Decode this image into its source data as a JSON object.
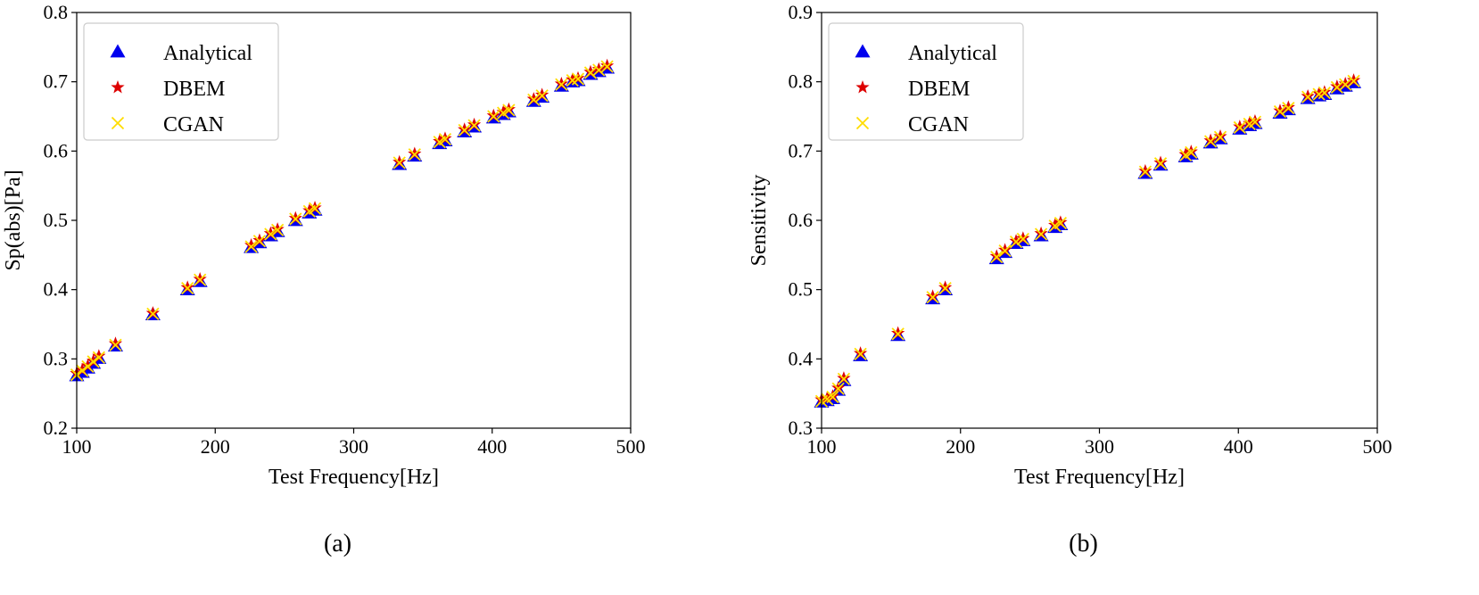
{
  "colors": {
    "analytical": "#0000ee",
    "dbem": "#dd0000",
    "cgan": "#ffdd00"
  },
  "chart_data": [
    {
      "type": "scatter",
      "caption": "(a)",
      "xlabel": "Test Frequency[Hz]",
      "ylabel": "Sp(abs)[Pa]",
      "xlim": [
        100,
        500
      ],
      "ylim": [
        0.2,
        0.8
      ],
      "xticks": [
        100,
        200,
        300,
        400,
        500
      ],
      "yticks": [
        0.2,
        0.3,
        0.4,
        0.5,
        0.6,
        0.7,
        0.8
      ],
      "grid": false,
      "legend_position": "top-left",
      "x": [
        100,
        104,
        108,
        112,
        116,
        128,
        155,
        180,
        189,
        226,
        232,
        240,
        245,
        258,
        268,
        272,
        333,
        344,
        362,
        366,
        380,
        387,
        401,
        408,
        412,
        430,
        436,
        450,
        458,
        462,
        471,
        477,
        483
      ],
      "series": [
        {
          "name": "Analytical",
          "marker": "triangle",
          "values": [
            0.276,
            0.281,
            0.287,
            0.294,
            0.301,
            0.319,
            0.364,
            0.4,
            0.412,
            0.461,
            0.468,
            0.478,
            0.484,
            0.5,
            0.511,
            0.515,
            0.581,
            0.593,
            0.611,
            0.615,
            0.628,
            0.635,
            0.648,
            0.653,
            0.657,
            0.672,
            0.678,
            0.694,
            0.7,
            0.702,
            0.711,
            0.715,
            0.72
          ]
        },
        {
          "name": "DBEM",
          "marker": "star",
          "values": [
            0.279,
            0.284,
            0.29,
            0.297,
            0.304,
            0.322,
            0.366,
            0.403,
            0.415,
            0.464,
            0.471,
            0.481,
            0.487,
            0.503,
            0.514,
            0.518,
            0.584,
            0.596,
            0.614,
            0.618,
            0.631,
            0.638,
            0.651,
            0.656,
            0.66,
            0.675,
            0.681,
            0.697,
            0.703,
            0.705,
            0.714,
            0.718,
            0.723
          ]
        },
        {
          "name": "CGAN",
          "marker": "x",
          "values": [
            0.277,
            0.283,
            0.289,
            0.296,
            0.302,
            0.32,
            0.365,
            0.402,
            0.414,
            0.462,
            0.47,
            0.48,
            0.486,
            0.502,
            0.513,
            0.517,
            0.583,
            0.595,
            0.613,
            0.617,
            0.63,
            0.637,
            0.65,
            0.655,
            0.659,
            0.674,
            0.68,
            0.696,
            0.702,
            0.704,
            0.713,
            0.717,
            0.722
          ]
        }
      ]
    },
    {
      "type": "scatter",
      "caption": "(b)",
      "xlabel": "Test Frequency[Hz]",
      "ylabel": "Sensitivity",
      "xlim": [
        100,
        500
      ],
      "ylim": [
        0.3,
        0.9
      ],
      "xticks": [
        100,
        200,
        300,
        400,
        500
      ],
      "yticks": [
        0.3,
        0.4,
        0.5,
        0.6,
        0.7,
        0.8,
        0.9
      ],
      "grid": false,
      "legend_position": "top-left",
      "x": [
        100,
        104,
        108,
        112,
        116,
        128,
        155,
        180,
        189,
        226,
        232,
        240,
        245,
        258,
        268,
        272,
        333,
        344,
        362,
        366,
        380,
        387,
        401,
        408,
        412,
        430,
        436,
        450,
        458,
        462,
        471,
        477,
        483
      ],
      "series": [
        {
          "name": "Analytical",
          "marker": "triangle",
          "values": [
            0.338,
            0.34,
            0.343,
            0.355,
            0.369,
            0.405,
            0.434,
            0.487,
            0.5,
            0.545,
            0.554,
            0.567,
            0.571,
            0.578,
            0.59,
            0.594,
            0.668,
            0.68,
            0.692,
            0.696,
            0.712,
            0.718,
            0.732,
            0.737,
            0.74,
            0.755,
            0.76,
            0.776,
            0.78,
            0.782,
            0.79,
            0.794,
            0.799
          ]
        },
        {
          "name": "DBEM",
          "marker": "star",
          "values": [
            0.341,
            0.343,
            0.346,
            0.358,
            0.372,
            0.408,
            0.437,
            0.49,
            0.503,
            0.548,
            0.557,
            0.57,
            0.574,
            0.581,
            0.593,
            0.597,
            0.671,
            0.683,
            0.695,
            0.699,
            0.715,
            0.721,
            0.735,
            0.74,
            0.743,
            0.758,
            0.763,
            0.779,
            0.783,
            0.785,
            0.793,
            0.797,
            0.802
          ]
        },
        {
          "name": "CGAN",
          "marker": "x",
          "values": [
            0.339,
            0.342,
            0.345,
            0.357,
            0.371,
            0.407,
            0.436,
            0.489,
            0.502,
            0.547,
            0.556,
            0.569,
            0.573,
            0.58,
            0.592,
            0.596,
            0.67,
            0.682,
            0.694,
            0.698,
            0.714,
            0.72,
            0.734,
            0.739,
            0.742,
            0.757,
            0.762,
            0.778,
            0.782,
            0.784,
            0.792,
            0.796,
            0.801
          ]
        }
      ]
    }
  ]
}
